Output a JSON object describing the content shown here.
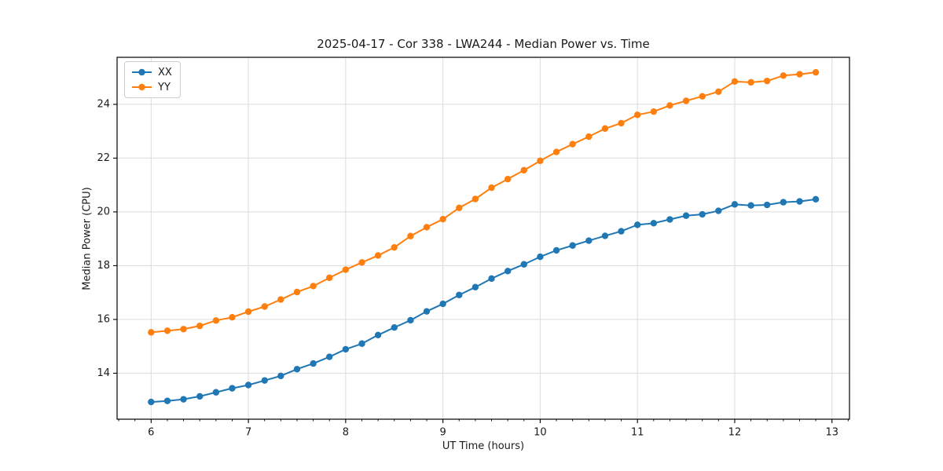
{
  "chart_data": {
    "type": "line",
    "title": "2025-04-17 - Cor 338 - LWA244 - Median Power vs. Time",
    "xlabel": "UT Time (hours)",
    "ylabel": "Median Power (CPU)",
    "xlim": [
      5.65,
      13.18
    ],
    "ylim": [
      12.29,
      25.75
    ],
    "xticks": [
      6,
      7,
      8,
      9,
      10,
      11,
      12,
      13
    ],
    "yticks": [
      14,
      16,
      18,
      20,
      22,
      24
    ],
    "x_minor_step": 0.16667,
    "grid": true,
    "grid_color": "#dcdcdc",
    "axis_color": "#000000",
    "text_color": "#1a1a1a",
    "legend_position": "upper-left",
    "x": [
      6.0,
      6.167,
      6.333,
      6.5,
      6.667,
      6.833,
      7.0,
      7.167,
      7.333,
      7.5,
      7.667,
      7.833,
      8.0,
      8.167,
      8.333,
      8.5,
      8.667,
      8.833,
      9.0,
      9.167,
      9.333,
      9.5,
      9.667,
      9.833,
      10.0,
      10.167,
      10.333,
      10.5,
      10.667,
      10.833,
      11.0,
      11.167,
      11.333,
      11.5,
      11.667,
      11.833,
      12.0,
      12.167,
      12.333,
      12.5,
      12.667,
      12.833
    ],
    "series": [
      {
        "name": "XX",
        "color": "#1f77b4",
        "values": [
          12.93,
          12.97,
          13.03,
          13.14,
          13.29,
          13.44,
          13.56,
          13.73,
          13.9,
          14.15,
          14.36,
          14.61,
          14.89,
          15.1,
          15.42,
          15.7,
          15.97,
          16.3,
          16.58,
          16.91,
          17.2,
          17.52,
          17.8,
          18.05,
          18.33,
          18.57,
          18.75,
          18.93,
          19.11,
          19.28,
          19.52,
          19.58,
          19.72,
          19.86,
          19.91,
          20.04,
          20.28,
          20.24,
          20.26,
          20.36,
          20.39,
          20.47
        ]
      },
      {
        "name": "YY",
        "color": "#ff7f0e",
        "values": [
          15.52,
          15.58,
          15.64,
          15.76,
          15.96,
          16.08,
          16.29,
          16.48,
          16.74,
          17.02,
          17.24,
          17.55,
          17.85,
          18.12,
          18.38,
          18.68,
          19.1,
          19.43,
          19.73,
          20.15,
          20.48,
          20.9,
          21.22,
          21.55,
          21.9,
          22.23,
          22.52,
          22.8,
          23.1,
          23.3,
          23.61,
          23.73,
          23.96,
          24.13,
          24.3,
          24.47,
          24.85,
          24.82,
          24.87,
          25.07,
          25.12,
          25.19
        ]
      }
    ]
  }
}
